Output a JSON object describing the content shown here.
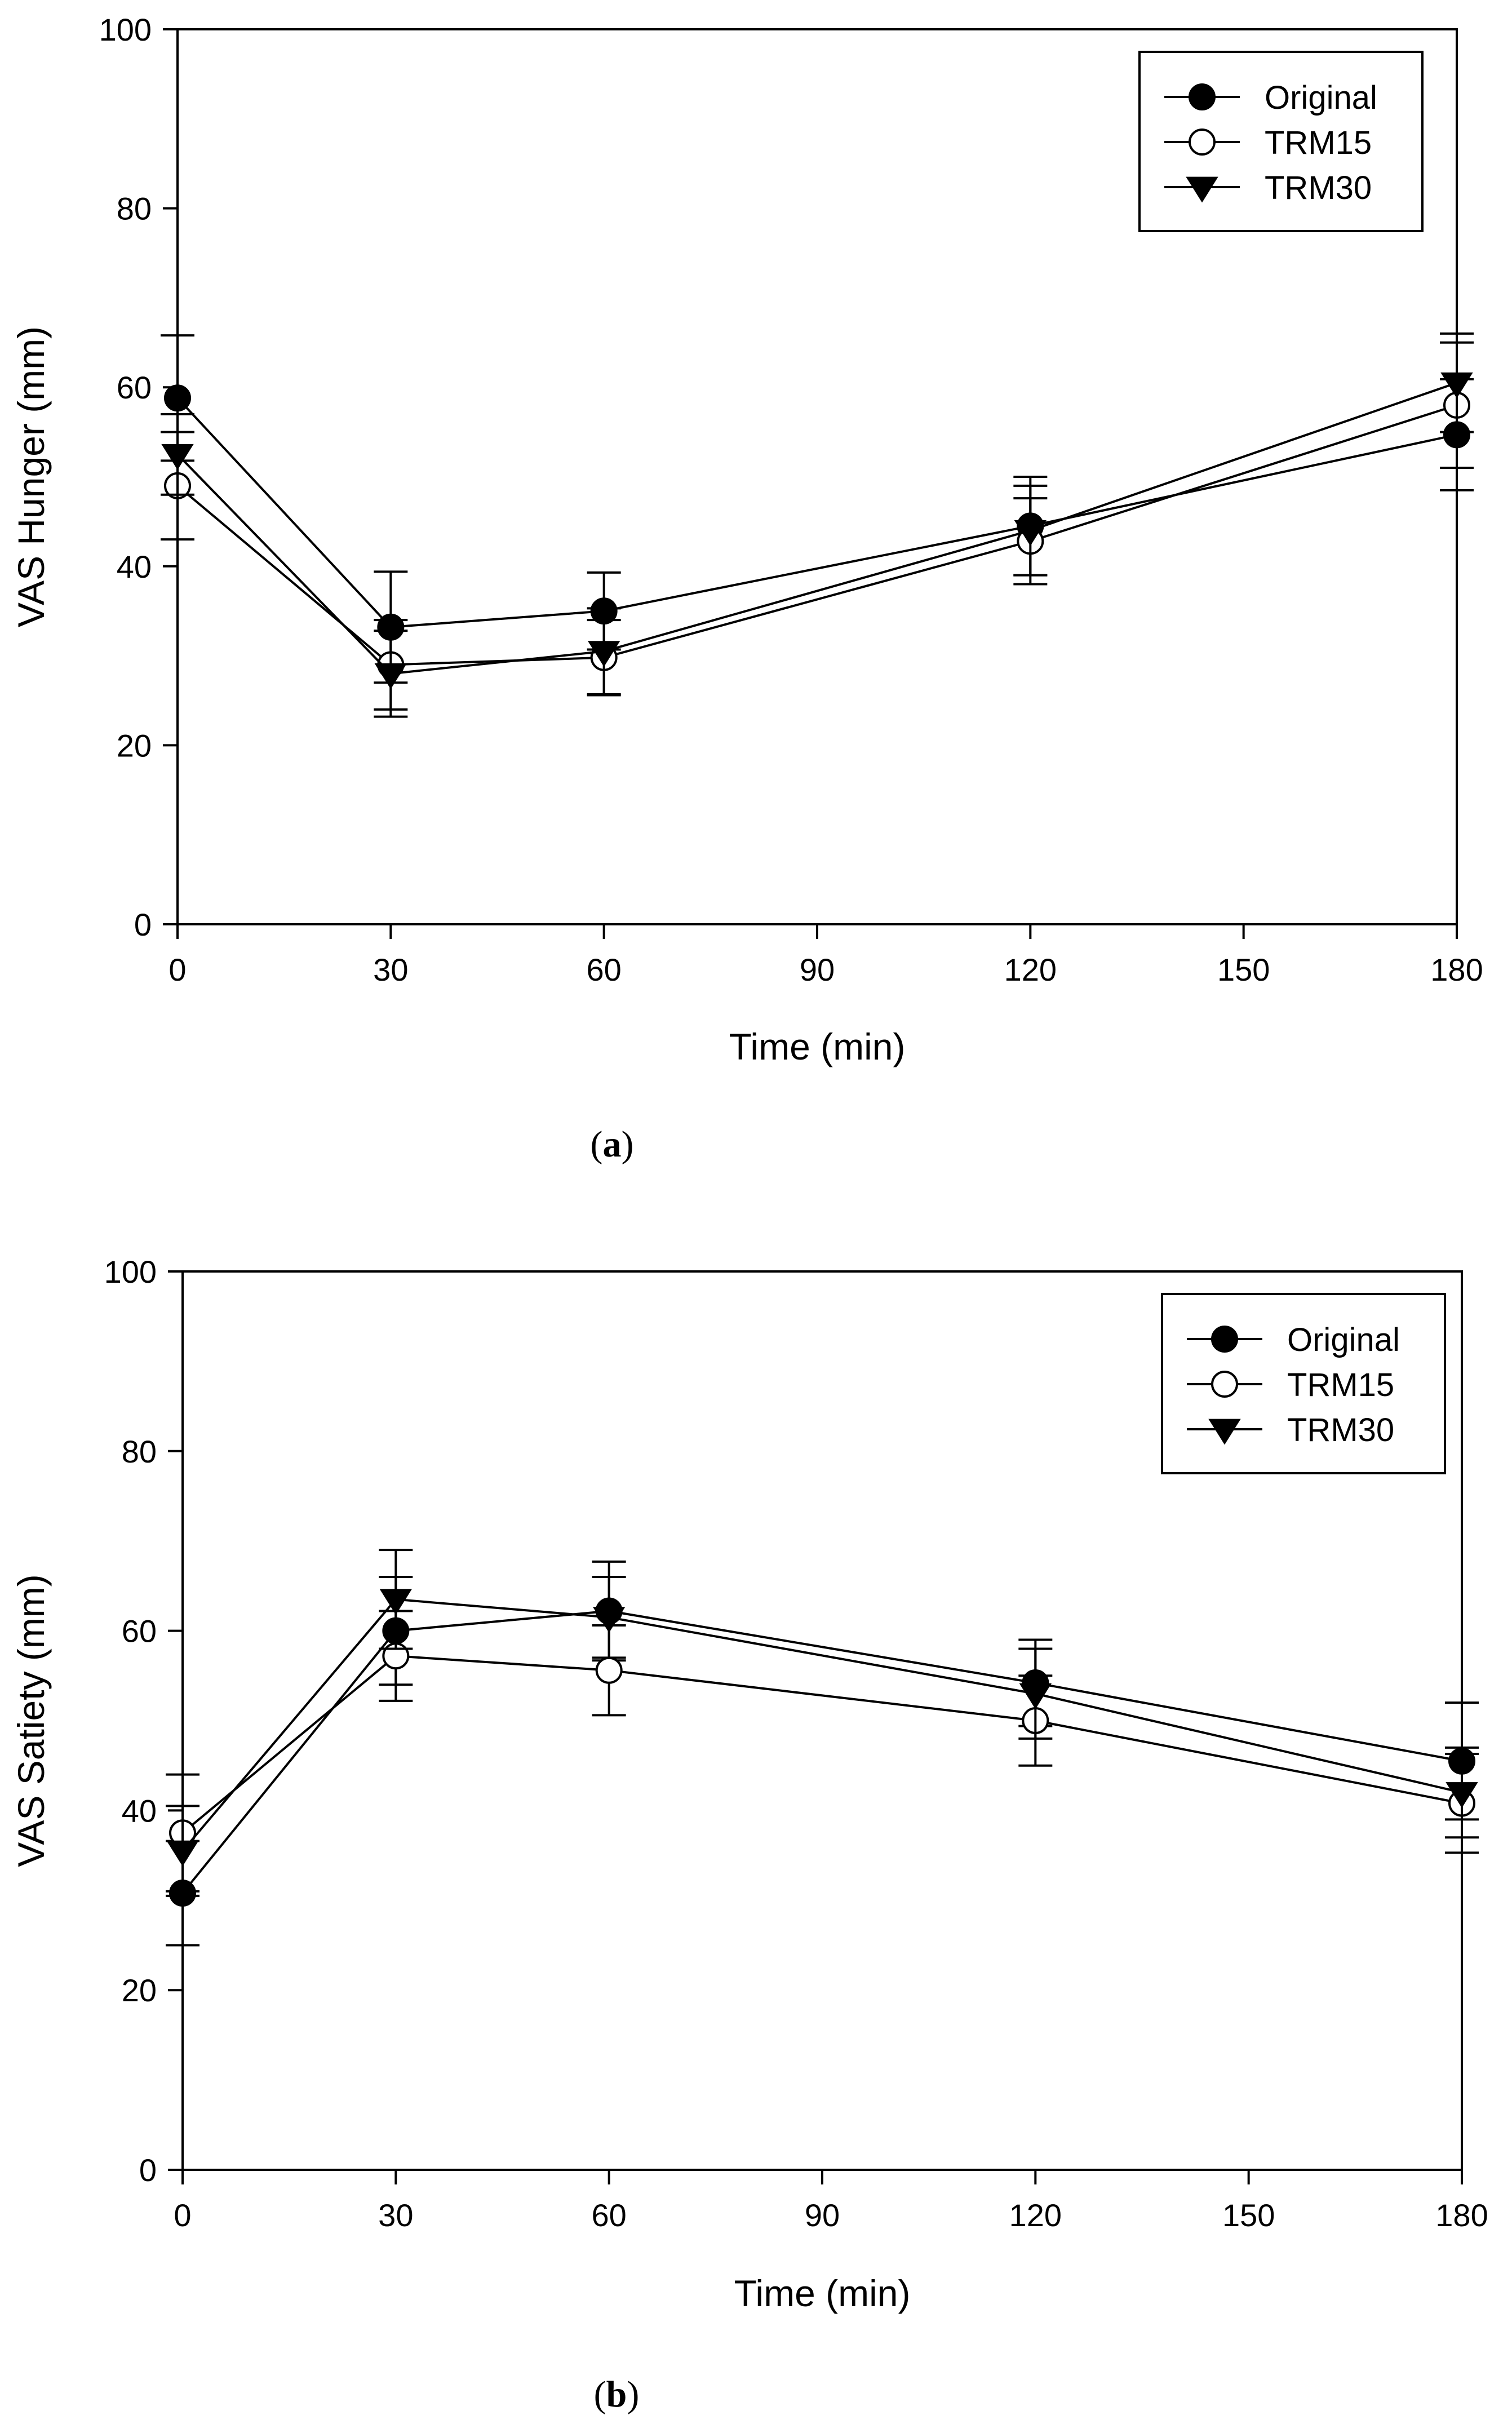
{
  "chart_data": [
    {
      "panel_label": "a",
      "type": "line",
      "title": "",
      "xlabel": "Time (min)",
      "ylabel": "VAS Hunger (mm)",
      "xlim": [
        0,
        180
      ],
      "ylim": [
        0,
        100
      ],
      "x_ticks": [
        0,
        30,
        60,
        90,
        120,
        150,
        180
      ],
      "y_ticks": [
        0,
        20,
        40,
        60,
        80,
        100
      ],
      "grid": false,
      "legend_position": "top-right",
      "series": [
        {
          "name": "Original",
          "marker": "filled-circle",
          "x": [
            0,
            30,
            60,
            120,
            180
          ],
          "values": [
            58.8,
            33.2,
            35.0,
            44.5,
            54.7
          ],
          "errors": [
            7.0,
            6.2,
            4.3,
            5.5,
            6.2
          ]
        },
        {
          "name": "TRM15",
          "marker": "open-circle",
          "x": [
            0,
            30,
            60,
            120,
            180
          ],
          "values": [
            49.0,
            29.0,
            29.8,
            42.8,
            58.0
          ],
          "errors": [
            6.0,
            5.0,
            4.2,
            4.8,
            7.0
          ]
        },
        {
          "name": "TRM30",
          "marker": "filled-triangle-down",
          "x": [
            0,
            30,
            60,
            120,
            180
          ],
          "values": [
            52.5,
            28.0,
            30.5,
            44.0,
            60.5
          ],
          "errors": [
            4.5,
            4.8,
            4.8,
            5.0,
            5.5
          ]
        }
      ]
    },
    {
      "panel_label": "b",
      "type": "line",
      "title": "",
      "xlabel": "Time (min)",
      "ylabel": "VAS Satiety (mm)",
      "xlim": [
        0,
        180
      ],
      "ylim": [
        0,
        100
      ],
      "x_ticks": [
        0,
        30,
        60,
        90,
        120,
        150,
        180
      ],
      "y_ticks": [
        0,
        20,
        40,
        60,
        80,
        100
      ],
      "grid": false,
      "legend_position": "top-right",
      "series": [
        {
          "name": "Original",
          "marker": "filled-circle",
          "x": [
            0,
            30,
            60,
            120,
            180
          ],
          "values": [
            30.8,
            60.0,
            62.2,
            54.2,
            45.5
          ],
          "errors": [
            5.8,
            6.0,
            5.5,
            4.8,
            6.5
          ]
        },
        {
          "name": "TRM15",
          "marker": "open-circle",
          "x": [
            0,
            30,
            60,
            120,
            180
          ],
          "values": [
            37.5,
            57.2,
            55.6,
            50.0,
            40.8
          ],
          "errors": [
            6.5,
            5.0,
            5.0,
            5.0,
            5.5
          ]
        },
        {
          "name": "TRM30",
          "marker": "filled-triangle-down",
          "x": [
            0,
            30,
            60,
            120,
            180
          ],
          "values": [
            35.5,
            63.5,
            61.5,
            53.0,
            42.0
          ],
          "errors": [
            5.0,
            5.5,
            4.5,
            5.0,
            5.0
          ]
        }
      ]
    }
  ]
}
